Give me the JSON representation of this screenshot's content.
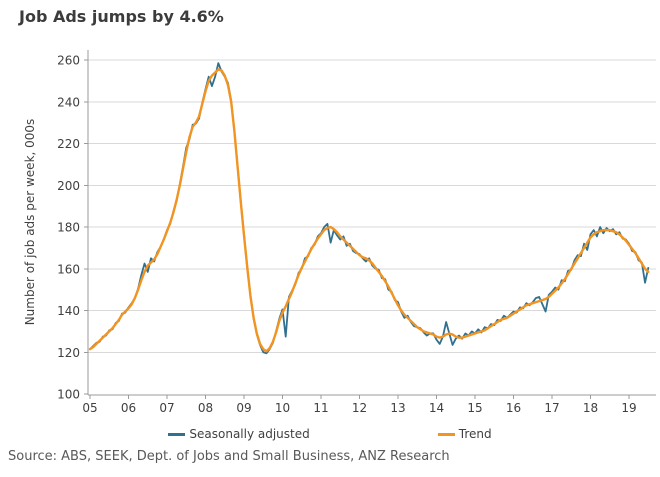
{
  "chart_data": {
    "type": "line",
    "title": "Job Ads jumps by 4.6%",
    "ylabel": "Number of job ads per week, 000s",
    "xlabel": "",
    "ylim": [
      100,
      260
    ],
    "yticks": [
      100,
      120,
      140,
      160,
      180,
      200,
      220,
      240,
      260
    ],
    "x_tick_labels": [
      "05",
      "06",
      "07",
      "08",
      "09",
      "10",
      "11",
      "12",
      "13",
      "14",
      "15",
      "16",
      "17",
      "18",
      "19"
    ],
    "x_start_year": 2005,
    "frequency": "monthly",
    "grid": "horizontal",
    "legend_position": "bottom-center",
    "series": [
      {
        "name": "Seasonally adjusted",
        "color": "#31708f",
        "values": [
          121.5,
          123,
          124.5,
          125,
          127.5,
          128,
          130.5,
          131,
          134,
          135,
          138.5,
          139,
          141.5,
          143.5,
          146,
          150.5,
          157,
          162.5,
          158.5,
          165,
          163.5,
          168,
          170.5,
          174,
          178.5,
          181.5,
          187.5,
          192.5,
          200.5,
          209,
          218,
          222,
          229,
          229.5,
          232,
          239.5,
          246,
          252,
          247.5,
          252,
          258.5,
          254.5,
          252,
          249,
          240.5,
          226,
          209,
          192,
          176.5,
          160.5,
          147.5,
          136,
          128.5,
          123.5,
          120,
          119.5,
          121.5,
          124.5,
          130,
          136,
          140.5,
          127.5,
          146.5,
          149.5,
          152.5,
          158,
          160,
          165,
          166,
          170,
          171.5,
          175.5,
          177,
          180,
          181.5,
          172.5,
          178.5,
          176,
          174,
          175.5,
          171,
          172,
          168.5,
          167.5,
          167,
          165,
          163.5,
          165,
          161.5,
          160,
          159.5,
          155.5,
          155,
          150,
          149,
          145,
          144,
          139.5,
          136.5,
          137.5,
          134.5,
          132.5,
          132,
          131.5,
          129.5,
          128,
          129,
          129,
          126,
          124,
          127.5,
          134.5,
          129,
          123.5,
          126.5,
          128,
          126.5,
          129,
          128,
          130,
          129,
          131,
          129.5,
          132,
          131.5,
          133.5,
          133,
          135.5,
          135,
          137.5,
          136.5,
          138,
          139.5,
          139,
          141.5,
          141,
          143.5,
          142.5,
          144,
          146,
          146.5,
          143,
          139.5,
          147.5,
          149,
          151,
          150,
          154.5,
          154,
          159,
          159.5,
          164,
          166.5,
          166,
          172,
          169,
          176.5,
          178.5,
          175.5,
          180,
          177,
          179.5,
          178,
          179,
          176.5,
          177.5,
          174.5,
          174,
          172,
          168.5,
          168,
          164,
          163,
          153.3,
          160.4
        ]
      },
      {
        "name": "Trend",
        "color": "#f29422",
        "values": [
          121.5,
          122.5,
          124,
          125.5,
          127,
          128.5,
          130,
          131.5,
          133.5,
          135.5,
          138,
          139.5,
          141,
          143,
          146,
          150,
          154.5,
          158.5,
          161.5,
          163,
          164.5,
          167,
          170.5,
          174,
          178,
          182,
          187,
          193,
          200,
          208,
          216,
          223,
          228,
          230,
          233,
          239,
          245,
          250,
          252.5,
          254,
          255.5,
          255,
          252.5,
          248,
          240,
          226,
          209,
          192,
          176,
          161,
          147,
          136.5,
          129,
          124,
          121.5,
          120.5,
          122,
          125,
          129.5,
          135,
          139,
          142,
          145.5,
          149,
          153,
          157,
          160.5,
          163.5,
          166.5,
          169.5,
          172,
          174.5,
          176.5,
          178.5,
          179.5,
          180,
          179,
          177.5,
          175.5,
          174,
          172.5,
          171,
          169.5,
          168,
          166.5,
          165.5,
          165,
          164,
          162.5,
          160.5,
          158.5,
          156.5,
          154,
          151.5,
          148.5,
          145.5,
          142.5,
          140,
          138,
          136.5,
          135,
          133.5,
          132,
          131,
          130,
          129.5,
          129,
          128.5,
          127.5,
          127,
          127.5,
          128.5,
          129,
          128.5,
          127.5,
          127,
          127,
          127.5,
          128,
          128.5,
          129,
          129.5,
          130,
          130.5,
          131.5,
          132.5,
          133.5,
          134.5,
          135.5,
          136,
          136.5,
          137.5,
          138.5,
          139.5,
          140.5,
          141.5,
          142.5,
          143,
          143.5,
          144,
          144.5,
          145,
          145.5,
          146.5,
          148,
          149.5,
          151,
          153,
          155,
          157.5,
          160,
          162.5,
          165,
          167.5,
          170,
          172.5,
          175,
          176.5,
          177.5,
          178,
          178.5,
          178.5,
          178.5,
          178,
          177.5,
          176.5,
          175,
          173.5,
          171.5,
          169.5,
          167.5,
          165,
          162.5,
          160,
          158.5
        ]
      }
    ]
  },
  "source": "Source: ABS, SEEK, Dept. of Jobs and Small Business, ANZ Research",
  "colors": {
    "title_text": "#3c3c3c",
    "axis_text": "#404040",
    "gridline": "#d9d9d9",
    "axis_line": "#9b9b9b",
    "source_text": "#595959"
  }
}
